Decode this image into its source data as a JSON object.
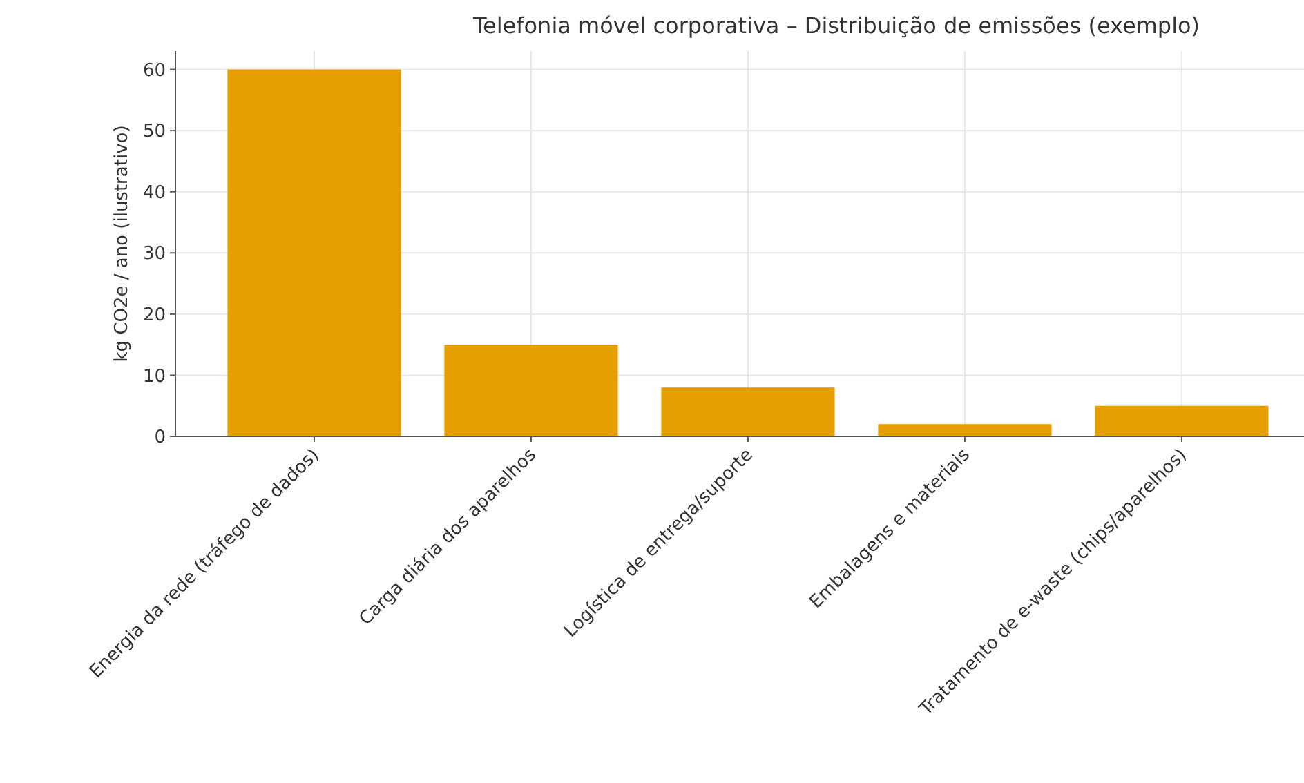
{
  "chart_data": {
    "type": "bar",
    "title": "Telefonia móvel corporativa – Distribuição de emissões (exemplo)",
    "ylabel": "kg CO2e / ano (ilustrativo)",
    "categories": [
      "Energia da rede (tráfego de dados)",
      "Carga diária dos aparelhos",
      "Logística de entrega/suporte",
      "Embalagens e materiais",
      "Tratamento de e-waste (chips/aparelhos)"
    ],
    "values": [
      60,
      15,
      8,
      2,
      5
    ],
    "color": "#e69f00",
    "ylim": [
      0,
      63
    ],
    "yticks": [
      0,
      10,
      20,
      30,
      40,
      50,
      60
    ],
    "grid": true
  }
}
